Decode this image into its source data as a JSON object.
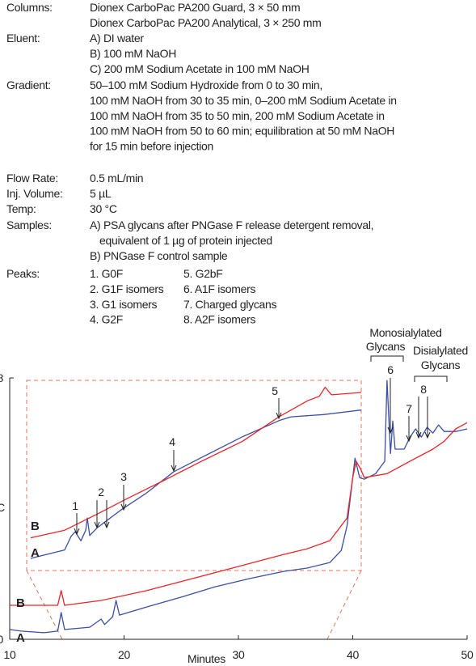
{
  "conditions": [
    {
      "label": "Columns:",
      "lines": [
        "Dionex CarboPac PA200 Guard, 3 × 50 mm",
        "Dionex CarboPac PA200 Analytical, 3 × 250 mm"
      ]
    },
    {
      "label": "Eluent:",
      "lines": [
        "A) DI water",
        "B) 100 mM NaOH",
        "C) 200 mM Sodium Acetate in 100 mM NaOH"
      ]
    },
    {
      "label": "Gradient:",
      "lines": [
        "50–100 mM Sodium Hydroxide from 0 to 30 min,",
        "100 mM NaOH from 30 to 35 min, 0–200 mM Sodium Acetate in",
        "100 mM NaOH from 35 to 50 min, 200 mM Sodium Acetate in",
        "100 mM NaOH from 50 to 60 min; equilibration at 50 mM NaOH",
        "for 15 min before injection"
      ]
    },
    {
      "label": "Flow Rate:",
      "lines": [
        "0.5 mL/min"
      ]
    },
    {
      "label": "Inj. Volume:",
      "lines": [
        "5 µL"
      ]
    },
    {
      "label": "Temp:",
      "lines": [
        "30 °C"
      ]
    },
    {
      "label": "Samples:",
      "lines": [
        "A) PSA glycans after PNGase F release detergent removal,",
        "equivalent of 1 µg of protein injected",
        "B) PNGase F control sample"
      ]
    }
  ],
  "peaks": {
    "label": "Peaks:",
    "items": [
      "1. G0F",
      "2. G1F isomers",
      "3. G1 isomers",
      "4. G2F",
      "5. G2bF",
      "6. A1F isomers",
      "7. Charged glycans",
      "8. A2F isomers"
    ]
  },
  "chart_data": [
    {
      "type": "line",
      "x_label": "Minutes",
      "y_label": "C",
      "xlim": [
        10,
        50
      ],
      "xticks": [
        10,
        20,
        30,
        40,
        50
      ],
      "ylim": [
        0,
        8
      ],
      "yticks": [
        0,
        8
      ],
      "annotations": [
        "6",
        "7",
        "8",
        "Monosialylated",
        "Glycans",
        "Disialylated",
        "Glycans"
      ],
      "series": [
        {
          "name": "A",
          "color": "#3b4ea6",
          "x": [
            10,
            11,
            13,
            14.2,
            14.5,
            14.8,
            17,
            18,
            18.3,
            19,
            19.3,
            19.6,
            22,
            25,
            28,
            31,
            34,
            36,
            38,
            39,
            39.5,
            40,
            40.2,
            40.6,
            41,
            42,
            42.8,
            43,
            43.3,
            43.5,
            43.7,
            44.5,
            45,
            45.5,
            46,
            46.5,
            47,
            47.5,
            48,
            49,
            50
          ],
          "values": [
            0.3,
            0.25,
            0.2,
            0.25,
            0.82,
            0.3,
            0.37,
            0.62,
            0.45,
            0.69,
            1.19,
            0.74,
            0.99,
            1.29,
            1.61,
            1.86,
            2.08,
            2.18,
            2.35,
            2.72,
            3.47,
            4.95,
            5.54,
            4.95,
            4.9,
            5.07,
            5.45,
            7.92,
            5.69,
            6.68,
            5.82,
            5.82,
            6.19,
            6.44,
            6.19,
            6.49,
            6.31,
            6.56,
            6.36,
            6.36,
            6.44
          ]
        },
        {
          "name": "B",
          "color": "#e8262a",
          "x": [
            10,
            14.2,
            14.5,
            14.8,
            18,
            22,
            26,
            30,
            34,
            36,
            38,
            39.5,
            40,
            40.3,
            40.7,
            41,
            43,
            45,
            47,
            48,
            49,
            50
          ],
          "values": [
            1.04,
            1.04,
            1.49,
            1.04,
            1.19,
            1.49,
            1.86,
            2.23,
            2.6,
            2.77,
            3.02,
            3.71,
            4.95,
            5.45,
            5.2,
            4.95,
            5.07,
            5.45,
            5.82,
            6.06,
            6.44,
            6.63
          ]
        }
      ]
    },
    {
      "type": "line",
      "xlim": [
        14.5,
        38
      ],
      "ylim": [
        0.5,
        3.0
      ],
      "annotations": [
        "1",
        "2",
        "3",
        "4",
        "5"
      ],
      "series": [
        {
          "name": "A",
          "color": "#3b4ea6",
          "x": [
            14.78,
            17.17,
            17.62,
            17.91,
            18.31,
            18.65,
            18.76,
            18.93,
            19.44,
            20.01,
            21.15,
            22.85,
            24.84,
            26.83,
            29.67,
            32.22,
            33.07,
            35.35,
            38
          ],
          "values": [
            0.66,
            0.77,
            0.95,
            1.01,
            0.89,
            1.03,
            1.19,
            0.96,
            1.06,
            1.14,
            1.3,
            1.51,
            1.8,
            1.99,
            2.26,
            2.47,
            2.52,
            2.55,
            2.61
          ]
        },
        {
          "name": "B",
          "color": "#e8262a",
          "x": [
            14.78,
            17.17,
            19.44,
            21.71,
            23.99,
            26.83,
            29.67,
            32.22,
            34.21,
            35.06,
            35.46,
            35.91,
            38
          ],
          "values": [
            0.93,
            1.03,
            1.24,
            1.46,
            1.67,
            1.94,
            2.2,
            2.52,
            2.73,
            2.79,
            2.91,
            2.81,
            2.84
          ]
        }
      ]
    }
  ]
}
